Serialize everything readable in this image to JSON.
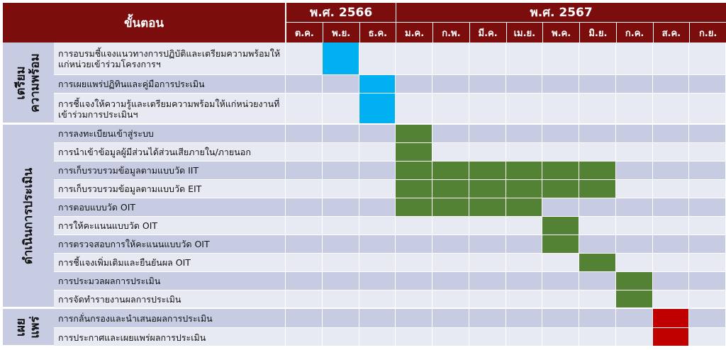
{
  "header": {
    "steps_label": "ขั้นตอน",
    "years": [
      {
        "label": "พ.ศ. 2566",
        "span": 3
      },
      {
        "label": "พ.ศ. 2567",
        "span": 9
      }
    ],
    "months": [
      "ต.ค.",
      "พ.ย.",
      "ธ.ค.",
      "ม.ค.",
      "ก.พ.",
      "มี.ค.",
      "เม.ย.",
      "พ.ค.",
      "มิ.ย.",
      "ก.ค.",
      "ส.ค.",
      "ก.ย."
    ]
  },
  "colors": {
    "header_bg": "#7b0d0d",
    "band_dark": "#c7cce3",
    "band_light": "#e8eaf3",
    "prepare": "#00b0f0",
    "execute": "#548235",
    "publish": "#c00000"
  },
  "phases": [
    {
      "label": "เตรียม\nความพร้อม",
      "color_key": "prepare",
      "tasks": [
        {
          "label": "การอบรมชี้แจงแนวทางการปฏิบัติและเตรียมความพร้อมให้แก่หน่วยเข้าร่วมโครงการฯ",
          "months": [
            "พ.ย."
          ]
        },
        {
          "label": "การเผยแพร่ปฏิทินและคู่มือการประเมิน",
          "months": [
            "ธ.ค."
          ]
        },
        {
          "label": "การชี้แจงให้ความรู้และเตรียมความพร้อมให้แก่หน่วยงานที่เข้าร่วมการประเมินฯ",
          "months": [
            "ธ.ค."
          ]
        }
      ]
    },
    {
      "label": "ดำเนินการประเมิน",
      "color_key": "execute",
      "tasks": [
        {
          "label": "การลงทะเบียนเข้าสู่ระบบ",
          "months": [
            "ม.ค."
          ]
        },
        {
          "label": "การนำเข้าข้อมูลผู้มีส่วนได้ส่วนเสียภายใน/ภายนอก",
          "months": [
            "ม.ค."
          ]
        },
        {
          "label": "การเก็บรวบรวมข้อมูลตามแบบวัด IIT",
          "months": [
            "ม.ค.",
            "ก.พ.",
            "มี.ค.",
            "เม.ย.",
            "พ.ค.",
            "มิ.ย."
          ]
        },
        {
          "label": "การเก็บรวบรวมข้อมูลตามแบบวัด EIT",
          "months": [
            "ม.ค.",
            "ก.พ.",
            "มี.ค.",
            "เม.ย.",
            "พ.ค.",
            "มิ.ย."
          ]
        },
        {
          "label": "การตอบแบบวัด OIT",
          "months": [
            "ม.ค.",
            "ก.พ.",
            "มี.ค.",
            "เม.ย."
          ]
        },
        {
          "label": "การให้คะแนนแบบวัด OIT",
          "months": [
            "พ.ค."
          ]
        },
        {
          "label": "การตรวจสอบการให้คะแนนแบบวัด OIT",
          "months": [
            "พ.ค."
          ]
        },
        {
          "label": "การชี้แจงเพิ่มเติมและยืนยันผล OIT",
          "months": [
            "มิ.ย."
          ]
        },
        {
          "label": "การประมวลผลการประเมิน",
          "months": [
            "ก.ค."
          ]
        },
        {
          "label": "การจัดทำรายงานผลการประเมิน",
          "months": [
            "ก.ค."
          ]
        }
      ]
    },
    {
      "label": "เผย\nแพร่",
      "color_key": "publish",
      "tasks": [
        {
          "label": "การกลั่นกรองและนำเสนอผลการประเมิน",
          "months": [
            "ส.ค."
          ]
        },
        {
          "label": "การประกาศและเผยแพร่ผลการประเมิน",
          "months": [
            "ส.ค."
          ]
        }
      ]
    }
  ]
}
